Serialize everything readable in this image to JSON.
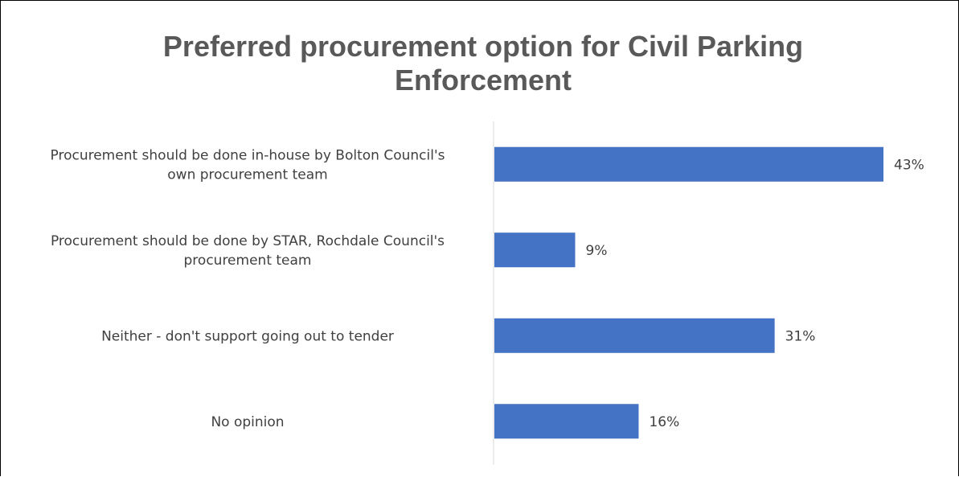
{
  "chart_data": {
    "type": "bar",
    "orientation": "horizontal",
    "title": "Preferred procurement option for Civil Parking Enforcement",
    "categories": [
      [
        "Procurement should be done in-house by Bolton Council's",
        "own procurement team"
      ],
      [
        "Procurement should be done by STAR, Rochdale Council's",
        "procurement team"
      ],
      [
        "Neither - don't support going out to tender"
      ],
      [
        "No opinion"
      ]
    ],
    "values": [
      43,
      9,
      31,
      16
    ],
    "data_labels": [
      "43%",
      "9%",
      "31%",
      "16%"
    ],
    "unit": "%",
    "xlim": [
      0,
      43
    ],
    "grid": false,
    "legend": "none",
    "bar_color": "#4472C4",
    "axis_color": "#D9D9D9",
    "text_color": "#404040",
    "title_color": "#595959"
  }
}
